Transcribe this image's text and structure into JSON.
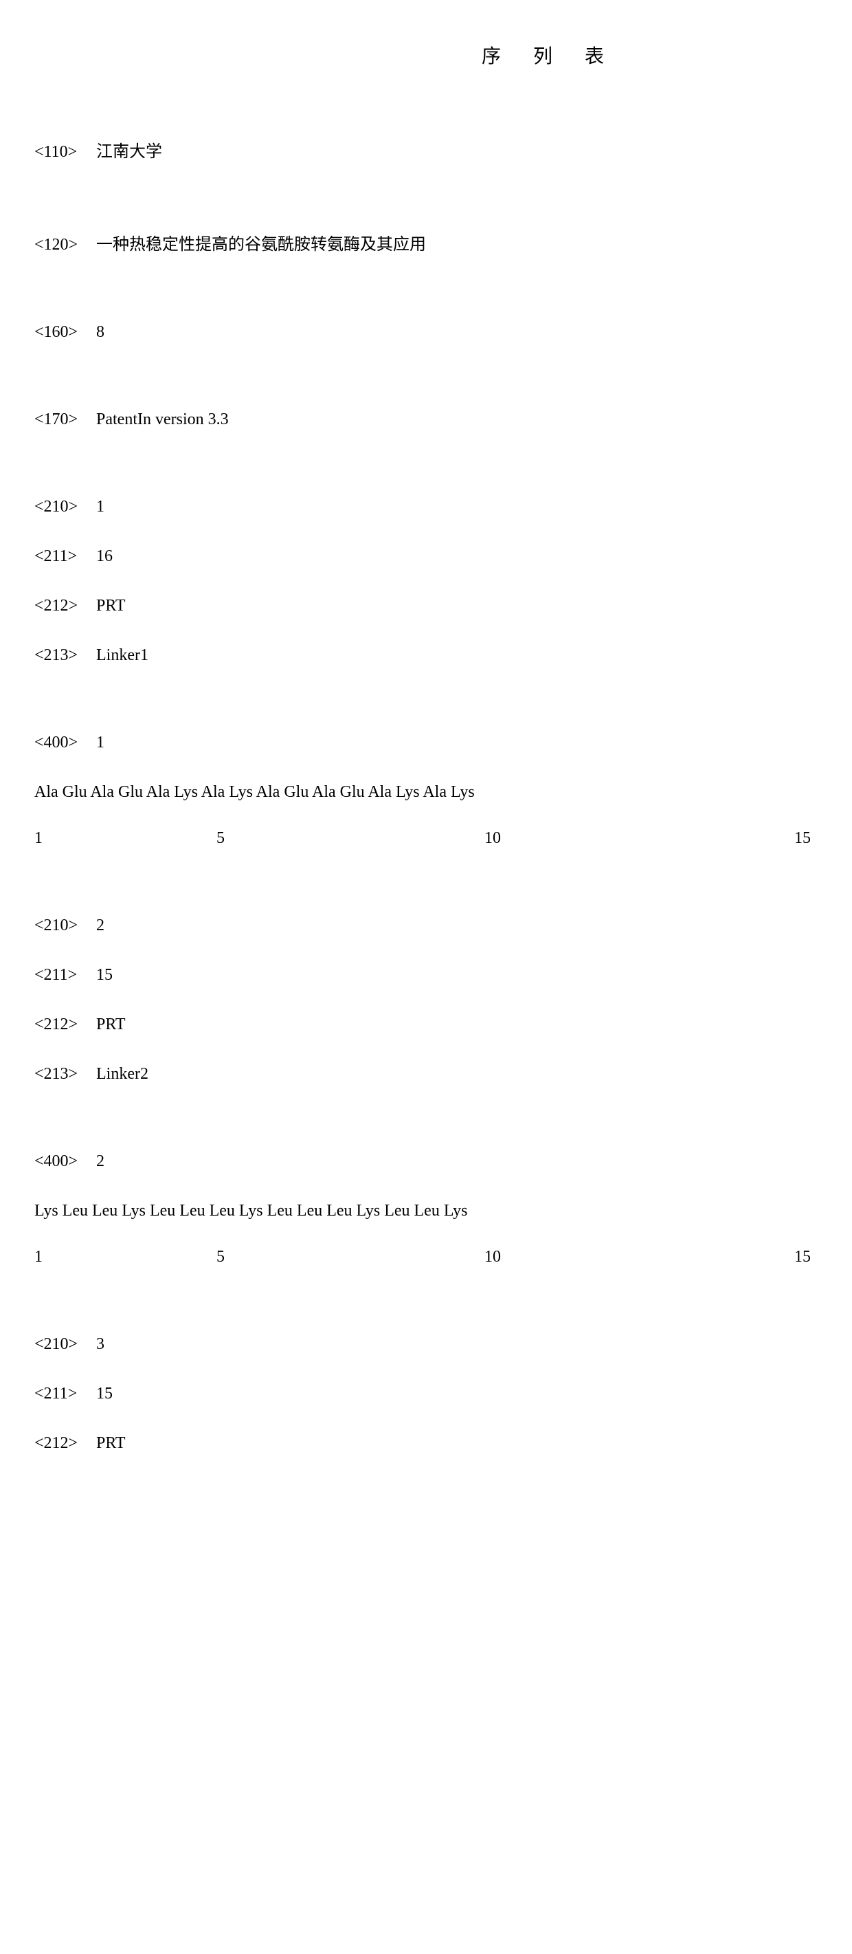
{
  "title": "序 列 表",
  "header": {
    "tag_110": "<110>",
    "val_110": "江南大学",
    "tag_120": "<120>",
    "val_120": "一种热稳定性提高的谷氨酰胺转氨酶及其应用",
    "tag_160": "<160>",
    "val_160": "8",
    "tag_170": "<170>",
    "val_170": "PatentIn version 3.3"
  },
  "seq1": {
    "tag_210": "<210>",
    "val_210": "1",
    "tag_211": "<211>",
    "val_211": "16",
    "tag_212": "<212>",
    "val_212": "PRT",
    "tag_213": "<213>",
    "val_213": "Linker1",
    "tag_400": "<400>",
    "val_400": "1",
    "sequence": "Ala Glu Ala Glu Ala Lys Ala Lys Ala Glu Ala Glu Ala Lys Ala Lys",
    "positions": {
      "p1": "1",
      "p5": "5",
      "p10": "10",
      "p15": "15"
    }
  },
  "seq2": {
    "tag_210": "<210>",
    "val_210": "2",
    "tag_211": "<211>",
    "val_211": "15",
    "tag_212": "<212>",
    "val_212": "PRT",
    "tag_213": "<213>",
    "val_213": "Linker2",
    "tag_400": "<400>",
    "val_400": "2",
    "sequence": "Lys Leu Leu Lys Leu Leu Leu Lys Leu Leu Leu Lys Leu Leu Lys",
    "positions": {
      "p1": "1",
      "p5": "5",
      "p10": "10",
      "p15": "15"
    }
  },
  "seq3": {
    "tag_210": "<210>",
    "val_210": "3",
    "tag_211": "<211>",
    "val_211": "15",
    "tag_212": "<212>",
    "val_212": "PRT"
  }
}
